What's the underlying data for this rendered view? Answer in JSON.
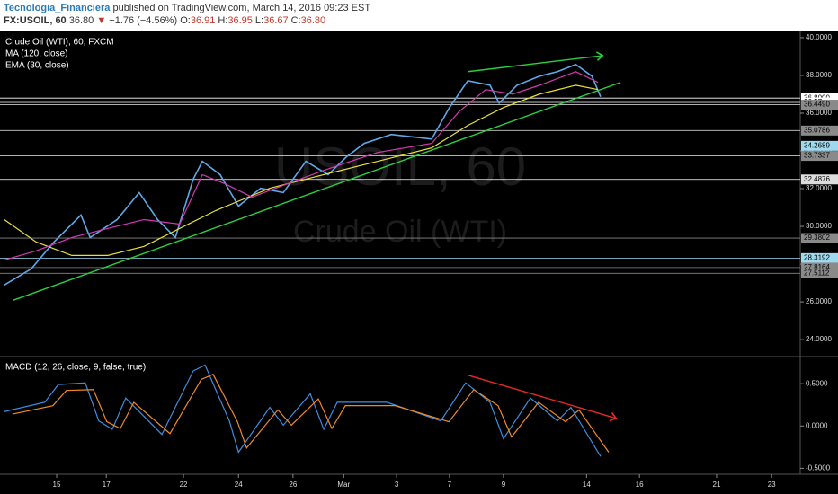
{
  "header": {
    "author": "Tecnologia_Financiera",
    "published": "published on TradingView.com, March 14, 2016 09:23 EST",
    "symbol": "FX:USOIL, 60",
    "last": "36.80",
    "arrow": "▼",
    "change": "−1.76 (−4.56%)",
    "ohlc": [
      {
        "label": "O:",
        "value": "36.91"
      },
      {
        "label": "H:",
        "value": "36.95"
      },
      {
        "label": "L:",
        "value": "36.67"
      },
      {
        "label": "C:",
        "value": "36.80"
      }
    ]
  },
  "chart_data": [
    {
      "type": "line",
      "title": "Crude Oil (WTI), 60, FXCM",
      "watermark": [
        "USOIL, 60",
        "Crude Oil (WTI)"
      ],
      "xlim": [
        0,
        148.3
      ],
      "ylim": [
        23.1,
        40.33
      ],
      "yticks": [
        {
          "value": 24,
          "label": "24.0000"
        },
        {
          "value": 26,
          "label": "26.0000"
        },
        {
          "value": 28,
          "label": "28.0000"
        },
        {
          "value": 30,
          "label": "30.0000"
        },
        {
          "value": 32,
          "label": "32.0000"
        },
        {
          "value": 34,
          "label": "34.0000"
        },
        {
          "value": 36,
          "label": "36.0000"
        },
        {
          "value": 38,
          "label": "38.0000"
        },
        {
          "value": 40,
          "label": "40.0000"
        }
      ],
      "series": [
        {
          "name": "Crude Oil (WTI)",
          "color": "#5fa8e8",
          "x": [
            0.8,
            5.8,
            10,
            15,
            16.7,
            21.7,
            25.8,
            29.2,
            32.5,
            35.8,
            37.5,
            40.8,
            44.2,
            48.3,
            52.5,
            56.7,
            60.8,
            64.2,
            67.5,
            72.5,
            80,
            83.3,
            86.7,
            90.8,
            92.5,
            95.8,
            100,
            103.3,
            106.7,
            109.7,
            111.3
          ],
          "values": [
            26.89,
            27.75,
            29.17,
            30.6,
            29.41,
            30.36,
            31.79,
            30.36,
            29.41,
            32.5,
            33.45,
            32.74,
            31.07,
            32.02,
            31.79,
            33.45,
            32.74,
            33.68,
            34.4,
            34.87,
            34.63,
            36.3,
            37.72,
            37.48,
            36.53,
            37.48,
            37.96,
            38.2,
            38.58,
            37.96,
            36.87
          ]
        },
        {
          "name": "MA (120, close)",
          "color": "#e8e03a",
          "x": [
            0.8,
            6.7,
            13.3,
            20,
            26.7,
            33.3,
            40,
            50,
            60,
            70,
            80,
            86.7,
            93.3,
            100,
            106.7,
            110.8
          ],
          "values": [
            30.36,
            29.17,
            28.46,
            28.46,
            28.94,
            29.89,
            30.84,
            32.02,
            32.74,
            33.45,
            34.16,
            35.35,
            36.3,
            37.01,
            37.48,
            37.25
          ]
        },
        {
          "name": "EMA (30, close)",
          "color": "#d23bb0",
          "x": [
            0.8,
            6.7,
            13.3,
            20,
            26.7,
            33.3,
            37.5,
            41.7,
            46.7,
            53.3,
            60,
            70,
            80,
            85,
            90,
            95,
            100,
            106.7,
            110.8
          ],
          "values": [
            28.22,
            28.7,
            29.41,
            29.89,
            30.36,
            30.12,
            32.74,
            32.26,
            31.55,
            32.26,
            32.97,
            33.92,
            34.4,
            36.06,
            37.25,
            37.01,
            37.48,
            38.2,
            37.63
          ]
        }
      ],
      "levels": [
        {
          "value": 36.8,
          "label": "36.8000",
          "color": "#ffffff",
          "box": "#ffffff"
        },
        {
          "value": 36.57,
          "label": "36.57",
          "color": "#ffffff",
          "box": "#ffffff"
        },
        {
          "value": 36.449,
          "label": "36.4490",
          "color": "#cccccc",
          "box": "#8a8a8a"
        },
        {
          "value": 35.0786,
          "label": "35.0786",
          "color": "#cccccc",
          "box": "#8a8a8a"
        },
        {
          "value": 34.2689,
          "label": "34.2689",
          "color": "#9fd9f0",
          "box": "#9fd9f0"
        },
        {
          "value": 33.7337,
          "label": "33.7337",
          "color": "#cccccc",
          "box": "#8a8a8a"
        },
        {
          "value": 32.4876,
          "label": "32.4876",
          "color": "#ffffff",
          "box": "#dddddd"
        },
        {
          "value": 29.3802,
          "label": "29.3802",
          "color": "#888888",
          "box": "#8a8a8a"
        },
        {
          "value": 28.3192,
          "label": "28.3192",
          "color": "#9fd9f0",
          "box": "#9fd9f0"
        },
        {
          "value": 27.8164,
          "label": "27.8164",
          "color": "#888888",
          "box": "#8a8a8a"
        },
        {
          "value": 27.5112,
          "label": "27.5112",
          "color": "#888888",
          "box": "#8a8a8a"
        }
      ],
      "trendlines": [
        {
          "color": "#2ecc40",
          "x": [
            2.5,
            115
          ],
          "values": [
            26.09,
            37.63
          ]
        },
        {
          "color": "#2ecc40",
          "x": [
            86.7,
            111.7
          ],
          "values": [
            38.2,
            39.05
          ],
          "arrow": true
        }
      ]
    },
    {
      "type": "line",
      "title": "MACD (12, 26, close, 9, false, true)",
      "xlim": [
        0,
        148.3
      ],
      "ylim": [
        -0.57,
        0.82
      ],
      "yticks": [
        {
          "value": -0.5,
          "label": "-0.5000"
        },
        {
          "value": 0,
          "label": "0.0000"
        },
        {
          "value": 0.5,
          "label": "0.5000"
        }
      ],
      "xticks": [
        {
          "value": 10.5,
          "label": "15"
        },
        {
          "value": 19.7,
          "label": "17"
        },
        {
          "value": 34,
          "label": "22"
        },
        {
          "value": 44.2,
          "label": "24"
        },
        {
          "value": 54.3,
          "label": "26"
        },
        {
          "value": 63.7,
          "label": "Mar"
        },
        {
          "value": 73.5,
          "label": "3"
        },
        {
          "value": 83.3,
          "label": "7"
        },
        {
          "value": 93.3,
          "label": "9"
        },
        {
          "value": 108.7,
          "label": "14"
        },
        {
          "value": 118.5,
          "label": "16"
        },
        {
          "value": 132.8,
          "label": "21"
        },
        {
          "value": 143,
          "label": "23"
        }
      ],
      "series": [
        {
          "name": "MACD",
          "color": "#3d8fe0",
          "x": [
            0.8,
            8.3,
            10.8,
            15.8,
            18.3,
            20.8,
            23.3,
            30,
            35.8,
            38,
            42.5,
            44.2,
            50,
            52.5,
            57.5,
            60,
            62.5,
            71.7,
            81.7,
            86.3,
            90.8,
            93.3,
            98.3,
            103.3,
            105.8,
            111.3
          ],
          "values": [
            0.17,
            0.28,
            0.49,
            0.51,
            0.06,
            -0.04,
            0.33,
            -0.1,
            0.65,
            0.72,
            0.06,
            -0.31,
            0.22,
            0.01,
            0.38,
            -0.04,
            0.28,
            0.28,
            0.06,
            0.51,
            0.28,
            -0.15,
            0.33,
            0.06,
            0.22,
            -0.36
          ]
        },
        {
          "name": "Signal",
          "color": "#f08a24",
          "x": [
            2.3,
            9.8,
            12.3,
            17.3,
            19.8,
            22.3,
            24.8,
            31.5,
            37.3,
            39.5,
            44,
            45.7,
            51.5,
            54,
            59,
            61.5,
            64,
            73.2,
            83.2,
            87.8,
            92.3,
            94.8,
            99.8,
            104.8,
            107.3,
            112.8
          ],
          "values": [
            0.14,
            0.24,
            0.42,
            0.43,
            0.05,
            -0.03,
            0.28,
            -0.09,
            0.55,
            0.61,
            0.05,
            -0.26,
            0.19,
            0.01,
            0.32,
            -0.03,
            0.24,
            0.24,
            0.05,
            0.43,
            0.24,
            -0.13,
            0.28,
            0.05,
            0.19,
            -0.31
          ]
        }
      ],
      "trendlines": [
        {
          "color": "#e8282b",
          "x": [
            86.7,
            114.2
          ],
          "values": [
            0.6,
            0.09
          ],
          "arrow": true
        }
      ]
    }
  ]
}
